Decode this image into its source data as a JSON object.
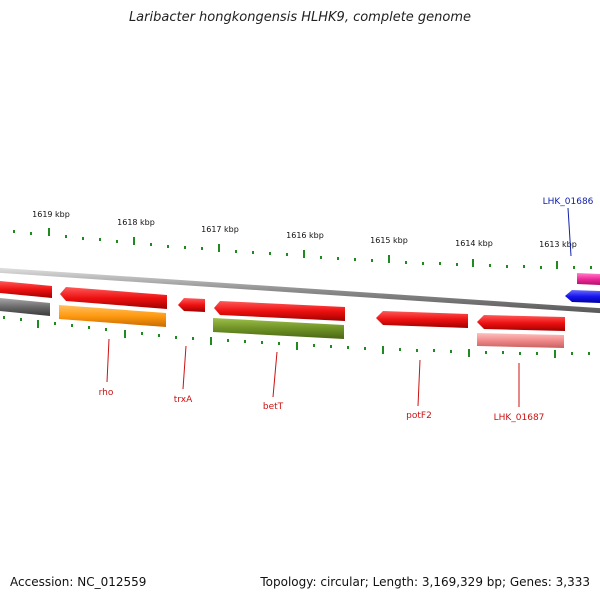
{
  "title": "Laribacter hongkongensis HLHK9, complete genome",
  "footer": {
    "accession": "Accession: NC_012559",
    "summary": "Topology: circular; Length: 3,169,329 bp; Genes: 3,333"
  },
  "colors": {
    "backbone": "#8c8c8c",
    "tick": "#1f8a1f",
    "gene_red": "#ee1111",
    "gene_orange": "#ff9a10",
    "gene_olive": "#6f9226",
    "gene_pink": "#f08a8a",
    "gene_grey": "#6a6a6a",
    "gene_magenta": "#ee2a9a",
    "gene_blue": "#1515ee",
    "label_red": "#cc1111",
    "label_blue": "#1122aa"
  },
  "kbp_labels": [
    "1619 kbp",
    "1618 kbp",
    "1617 kbp",
    "1616 kbp",
    "1615 kbp",
    "1614 kbp",
    "1613 kbp"
  ],
  "gene_labels": [
    "rho",
    "trxA",
    "betT",
    "potF2",
    "LHK_01687",
    "LHK_01686"
  ]
}
